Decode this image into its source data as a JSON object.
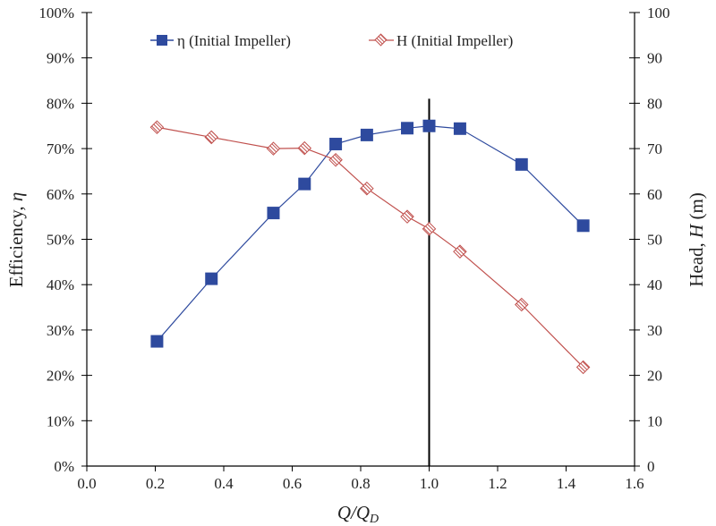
{
  "chart_data": {
    "type": "line",
    "xlabel": "Q/Q_D",
    "xlabel_main": "Q/Q",
    "xlabel_sub": "D",
    "ylabel_left": "Efficiency, ",
    "ylabel_left_symbol": "η",
    "ylabel_right": "Head, ",
    "ylabel_right_symbol": "H",
    "ylabel_right_unit": " (m)",
    "xlim": [
      0,
      1.6
    ],
    "ylim_left": [
      0,
      100
    ],
    "ylim_right": [
      0,
      100
    ],
    "x_ticks": [
      "0.0",
      "0.2",
      "0.4",
      "0.6",
      "0.8",
      "1.0",
      "1.2",
      "1.4",
      "1.6"
    ],
    "y_left_ticks": [
      "0%",
      "10%",
      "20%",
      "30%",
      "40%",
      "50%",
      "60%",
      "70%",
      "80%",
      "90%",
      "100%"
    ],
    "y_right_ticks": [
      "0",
      "10",
      "20",
      "30",
      "40",
      "50",
      "60",
      "70",
      "80",
      "90",
      "100"
    ],
    "grid": false,
    "legend_placement": "top",
    "reference_line": {
      "x": 1.0,
      "y_top_percent": 81
    },
    "series": [
      {
        "name": "η (Initial Impeller)",
        "axis": "left",
        "color": "#2e4a9e",
        "marker": "square",
        "x": [
          0.205,
          0.364,
          0.545,
          0.636,
          0.727,
          0.818,
          0.936,
          1.0,
          1.09,
          1.27,
          1.45
        ],
        "y": [
          27.5,
          41.3,
          55.8,
          62.2,
          71.0,
          73.0,
          74.5,
          75.0,
          74.4,
          66.5,
          53.0
        ]
      },
      {
        "name": "H (Initial Impeller)",
        "axis": "right",
        "color": "#c0504d",
        "marker": "diamond-hatched",
        "x": [
          0.205,
          0.364,
          0.545,
          0.636,
          0.727,
          0.818,
          0.936,
          1.0,
          1.09,
          1.27,
          1.45
        ],
        "y": [
          74.7,
          72.5,
          70.0,
          70.1,
          67.5,
          61.2,
          55.0,
          52.3,
          47.3,
          35.6,
          21.8
        ]
      }
    ]
  }
}
